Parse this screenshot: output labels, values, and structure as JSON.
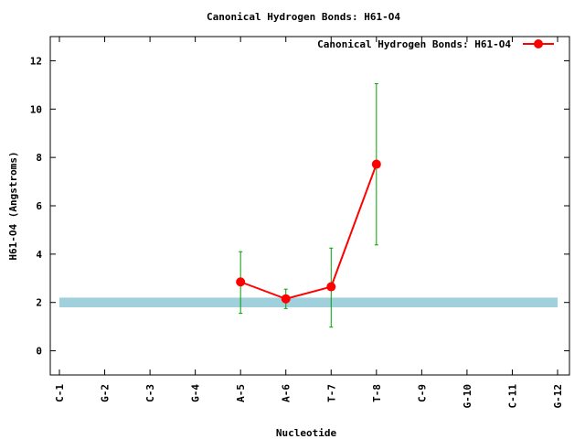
{
  "chart_data": {
    "type": "line",
    "title": "Canonical Hydrogen Bonds: H61-O4",
    "xlabel": "Nucleotide",
    "ylabel": "H61-O4 (Angstroms)",
    "categories": [
      "C-1",
      "G-2",
      "C-3",
      "G-4",
      "A-5",
      "A-6",
      "T-7",
      "T-8",
      "C-9",
      "G-10",
      "C-11",
      "G-12"
    ],
    "ylim": [
      -1,
      13
    ],
    "yticks": [
      0,
      2,
      4,
      6,
      8,
      10,
      12
    ],
    "legend_position": "top-right",
    "grid": false,
    "reference_band": {
      "y_low": 1.8,
      "y_high": 2.2,
      "color": "#9fd0dc"
    },
    "series": [
      {
        "name": "Canonical Hydrogen Bonds: H61-O4",
        "color": "#ff0000",
        "error_color": "#00a000",
        "points": [
          {
            "category": "A-5",
            "y": 2.85,
            "err_low": 1.55,
            "err_high": 4.1
          },
          {
            "category": "A-6",
            "y": 2.15,
            "err_low": 1.75,
            "err_high": 2.55
          },
          {
            "category": "T-7",
            "y": 2.65,
            "err_low": 0.98,
            "err_high": 4.25
          },
          {
            "category": "T-8",
            "y": 7.72,
            "err_low": 4.38,
            "err_high": 11.05
          }
        ]
      }
    ]
  }
}
